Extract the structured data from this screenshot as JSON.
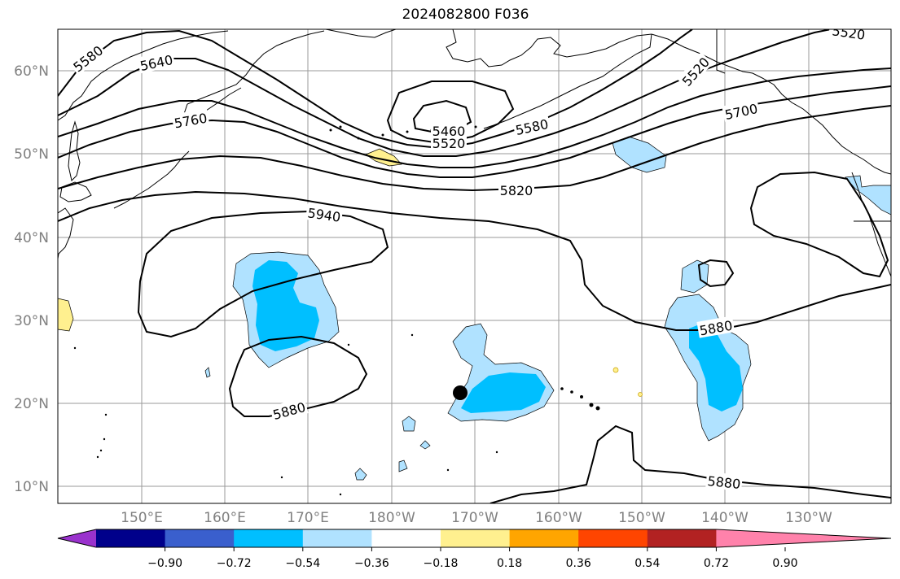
{
  "title": "2024082800 F036",
  "lat_labels": [
    "10°N",
    "20°N",
    "30°N",
    "40°N",
    "50°N",
    "60°N"
  ],
  "lon_labels": [
    "150°E",
    "160°E",
    "170°E",
    "180°W",
    "170°W",
    "160°W",
    "150°W",
    "140°W",
    "130°W"
  ],
  "contour_labels": [
    "5580",
    "5640",
    "5760",
    "5460",
    "5520",
    "5580",
    "5520",
    "5520",
    "5700",
    "5820",
    "5940",
    "5880",
    "5880",
    "5880"
  ],
  "colorbar": {
    "colors": [
      "#9a32cd",
      "#00008b",
      "#3a5fcd",
      "#00bfff",
      "#b0e2ff",
      "#ffffff",
      "#fff08f",
      "#ffa500",
      "#ff4500",
      "#b22222",
      "#ff82ab"
    ],
    "tick_labels": [
      "−0.90",
      "−0.72",
      "−0.54",
      "−0.36",
      "−0.18",
      "0.18",
      "0.36",
      "0.54",
      "0.72",
      "0.90"
    ]
  }
}
